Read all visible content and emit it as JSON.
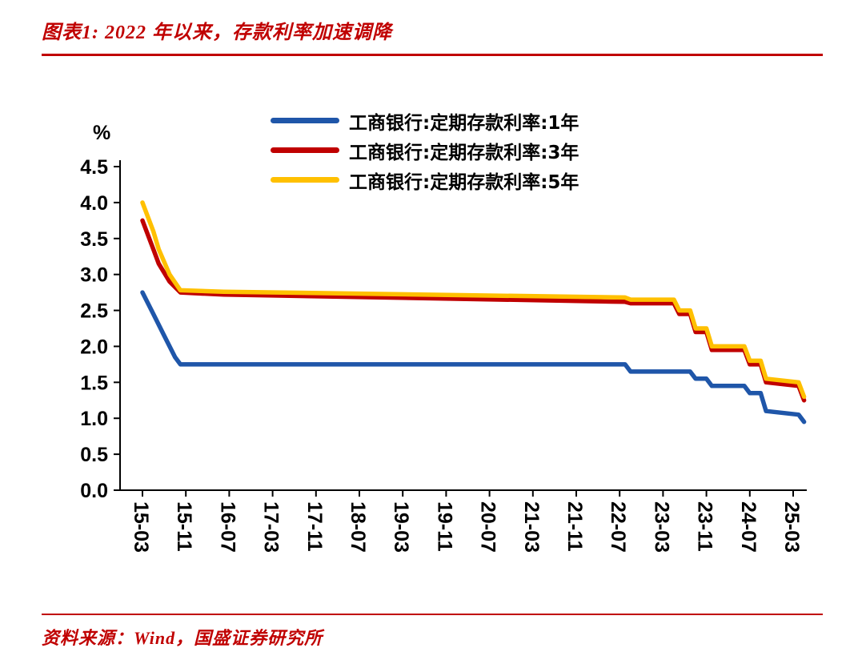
{
  "page": {
    "title": "图表1:  2022 年以来，存款利率加速调降",
    "source": "资料来源：Wind，国盛证券研究所",
    "accent_color": "#c00000"
  },
  "chart_data": {
    "type": "line",
    "ylabel": "%",
    "ylim": [
      0.0,
      4.5
    ],
    "y_ticks": [
      "4.5",
      "4.0",
      "3.5",
      "3.0",
      "2.5",
      "2.0",
      "1.5",
      "1.0",
      "0.5",
      "0.0"
    ],
    "x_ticks": [
      "15-03",
      "15-11",
      "16-07",
      "17-03",
      "17-11",
      "18-07",
      "19-03",
      "19-11",
      "20-07",
      "21-03",
      "21-11",
      "22-07",
      "23-03",
      "23-11",
      "24-07",
      "25-03"
    ],
    "x_start": "15-03",
    "x_end": "25-05",
    "grid": false,
    "legend_position": "top-center",
    "series": [
      {
        "name": "工商银行:定期存款利率:1年",
        "color": "#1f56a9",
        "points": [
          [
            "15-03",
            2.75
          ],
          [
            "15-05",
            2.45
          ],
          [
            "15-07",
            2.15
          ],
          [
            "15-09",
            1.85
          ],
          [
            "15-10",
            1.75
          ],
          [
            "22-08",
            1.75
          ],
          [
            "22-09",
            1.65
          ],
          [
            "23-08",
            1.65
          ],
          [
            "23-09",
            1.55
          ],
          [
            "23-11",
            1.55
          ],
          [
            "23-12",
            1.45
          ],
          [
            "24-06",
            1.45
          ],
          [
            "24-07",
            1.35
          ],
          [
            "24-09",
            1.35
          ],
          [
            "24-10",
            1.1
          ],
          [
            "25-04",
            1.05
          ],
          [
            "25-05",
            0.95
          ]
        ]
      },
      {
        "name": "工商银行:定期存款利率:3年",
        "color": "#c00000",
        "points": [
          [
            "15-03",
            3.75
          ],
          [
            "15-05",
            3.35
          ],
          [
            "15-06",
            3.15
          ],
          [
            "15-08",
            2.9
          ],
          [
            "15-10",
            2.75
          ],
          [
            "16-06",
            2.72
          ],
          [
            "22-08",
            2.62
          ],
          [
            "22-09",
            2.6
          ],
          [
            "23-05",
            2.6
          ],
          [
            "23-06",
            2.45
          ],
          [
            "23-08",
            2.45
          ],
          [
            "23-09",
            2.2
          ],
          [
            "23-11",
            2.2
          ],
          [
            "23-12",
            1.95
          ],
          [
            "24-06",
            1.95
          ],
          [
            "24-07",
            1.75
          ],
          [
            "24-09",
            1.75
          ],
          [
            "24-10",
            1.5
          ],
          [
            "25-04",
            1.45
          ],
          [
            "25-05",
            1.25
          ]
        ]
      },
      {
        "name": "工商银行:定期存款利率:5年",
        "color": "#ffc000",
        "points": [
          [
            "15-03",
            4.0
          ],
          [
            "15-05",
            3.6
          ],
          [
            "15-06",
            3.35
          ],
          [
            "15-08",
            3.0
          ],
          [
            "15-10",
            2.78
          ],
          [
            "16-06",
            2.76
          ],
          [
            "22-08",
            2.68
          ],
          [
            "22-09",
            2.65
          ],
          [
            "23-05",
            2.65
          ],
          [
            "23-06",
            2.5
          ],
          [
            "23-08",
            2.5
          ],
          [
            "23-09",
            2.25
          ],
          [
            "23-11",
            2.25
          ],
          [
            "23-12",
            2.0
          ],
          [
            "24-06",
            2.0
          ],
          [
            "24-07",
            1.8
          ],
          [
            "24-09",
            1.8
          ],
          [
            "24-10",
            1.55
          ],
          [
            "25-04",
            1.5
          ],
          [
            "25-05",
            1.3
          ]
        ]
      }
    ]
  }
}
